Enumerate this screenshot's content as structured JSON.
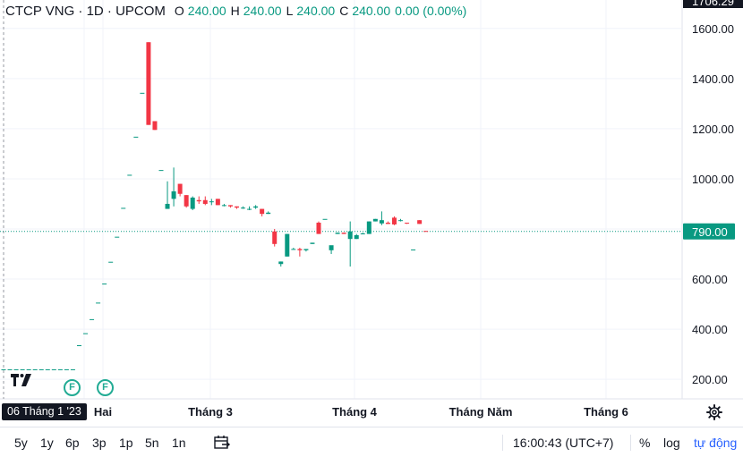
{
  "legend": {
    "title": "CTCP VNG · 1D · UPCOM",
    "o_label": "O",
    "o_value": "240.00",
    "h_label": "H",
    "h_value": "240.00",
    "l_label": "L",
    "l_value": "240.00",
    "c_label": "C",
    "c_value": "240.00",
    "change": "0.00 (0.00%)"
  },
  "price_axis": {
    "top_cut_label": "1706.29",
    "last_price_label": "790.00"
  },
  "crosshair": {
    "date_label": "06 Tháng 1 '23"
  },
  "flags": [
    "F",
    "F"
  ],
  "bottom_bar": {
    "ranges": [
      "5y",
      "1y",
      "6p",
      "3p",
      "1p",
      "5n",
      "1n"
    ],
    "clock": "16:00:43 (UTC+7)",
    "percent": "%",
    "log": "log",
    "auto": "tự động"
  },
  "icons": [
    "tradingview-logo-icon",
    "calendar-goto-icon",
    "gear-icon"
  ],
  "colors": {
    "up": "#089981",
    "down": "#f23645",
    "text": "#131722",
    "grid": "#f0f3fa",
    "accent": "#2962ff"
  },
  "chart_data": {
    "type": "candlestick",
    "y_ticks": [
      200,
      400,
      600,
      800,
      1000,
      1200,
      1400,
      1600
    ],
    "y_tick_labels": [
      "200.00",
      "400.00",
      "600.00",
      "800.00",
      "1000.00",
      "1200.00",
      "1400.00",
      "1600.00"
    ],
    "ylim": [
      122,
      1706.29
    ],
    "x_tick_labels": [
      "Hai",
      "Tháng 3",
      "Tháng 4",
      "Tháng Năm",
      "Tháng 6"
    ],
    "last_price": 790,
    "series": [
      {
        "name": "CTCP VNG",
        "candles": [
          [
            240,
            240,
            240,
            240
          ],
          [
            240,
            240,
            240,
            240
          ],
          [
            240,
            240,
            240,
            240
          ],
          [
            240,
            240,
            240,
            240
          ],
          [
            240,
            240,
            240,
            240
          ],
          [
            240,
            240,
            240,
            240
          ],
          [
            240,
            240,
            240,
            240
          ],
          [
            240,
            240,
            240,
            240
          ],
          [
            240,
            240,
            240,
            240
          ],
          [
            240,
            240,
            240,
            240
          ],
          [
            240,
            240,
            240,
            240
          ],
          [
            240,
            240,
            240,
            240
          ],
          [
            336,
            336,
            336,
            336
          ],
          [
            384,
            384,
            384,
            384
          ],
          [
            440,
            440,
            440,
            440
          ],
          [
            506,
            506,
            506,
            506
          ],
          [
            582,
            582,
            582,
            582
          ],
          [
            669,
            669,
            669,
            669
          ],
          [
            769,
            769,
            769,
            769
          ],
          [
            884,
            884,
            884,
            884
          ],
          [
            1016,
            1016,
            1016,
            1016
          ],
          [
            1168,
            1168,
            1168,
            1168
          ],
          [
            1343,
            1343,
            1343,
            1343
          ],
          [
            1545,
            1545,
            1215,
            1215
          ],
          [
            1230,
            1230,
            1195,
            1195
          ],
          [
            1035,
            1035,
            1035,
            1035
          ],
          [
            880,
            990,
            880,
            900
          ],
          [
            920,
            1045,
            890,
            950
          ],
          [
            980,
            980,
            930,
            940
          ],
          [
            935,
            935,
            885,
            890
          ],
          [
            880,
            930,
            875,
            925
          ],
          [
            915,
            930,
            900,
            910
          ],
          [
            915,
            930,
            895,
            900
          ],
          [
            910,
            920,
            895,
            910
          ],
          [
            920,
            920,
            895,
            895
          ],
          [
            895,
            900,
            890,
            895
          ],
          [
            895,
            895,
            885,
            890
          ],
          [
            890,
            890,
            880,
            885
          ],
          [
            885,
            890,
            880,
            885
          ],
          [
            880,
            890,
            875,
            880
          ],
          [
            885,
            895,
            880,
            890
          ],
          [
            880,
            880,
            850,
            860
          ],
          [
            860,
            870,
            860,
            865
          ],
          [
            790,
            800,
            730,
            740
          ],
          [
            660,
            670,
            650,
            670
          ],
          [
            690,
            780,
            690,
            780
          ],
          [
            720,
            725,
            720,
            720
          ],
          [
            720,
            725,
            690,
            715
          ],
          [
            715,
            720,
            710,
            720
          ],
          [
            740,
            745,
            740,
            745
          ],
          [
            825,
            830,
            780,
            780
          ],
          [
            840,
            840,
            840,
            840
          ],
          [
            715,
            730,
            700,
            735
          ],
          [
            780,
            785,
            780,
            785
          ],
          [
            785,
            785,
            780,
            780
          ],
          [
            760,
            830,
            650,
            790
          ],
          [
            760,
            780,
            760,
            775
          ],
          [
            780,
            785,
            780,
            782
          ],
          [
            780,
            830,
            780,
            830
          ],
          [
            830,
            840,
            830,
            840
          ],
          [
            822,
            870,
            815,
            835
          ],
          [
            825,
            830,
            820,
            820
          ],
          [
            845,
            850,
            815,
            818
          ],
          [
            835,
            840,
            830,
            835
          ],
          [
            825,
            825,
            820,
            822
          ],
          [
            718,
            718,
            718,
            718
          ],
          [
            835,
            835,
            820,
            820
          ],
          [
            792,
            792,
            790,
            790
          ]
        ]
      }
    ]
  }
}
